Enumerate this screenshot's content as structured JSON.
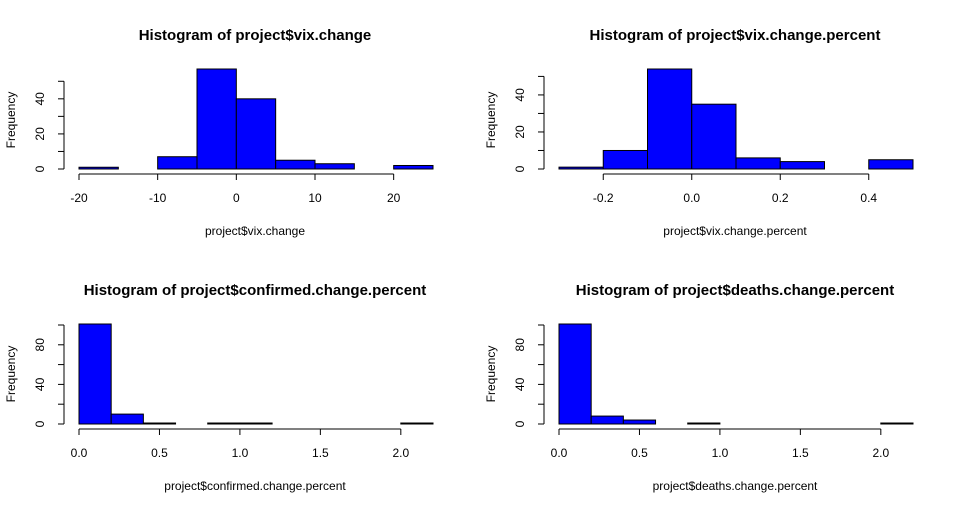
{
  "chart_data": [
    {
      "type": "bar",
      "title": "Histogram of project$vix.change",
      "xlabel": "project$vix.change",
      "ylabel": "Frequency",
      "bins": [
        [
          -20,
          -15
        ],
        [
          -15,
          -10
        ],
        [
          -10,
          -5
        ],
        [
          -5,
          0
        ],
        [
          0,
          5
        ],
        [
          5,
          10
        ],
        [
          10,
          15
        ],
        [
          15,
          20
        ],
        [
          20,
          25
        ]
      ],
      "values": [
        1,
        0,
        7,
        57,
        40,
        5,
        3,
        0,
        2
      ],
      "xlim": [
        -20,
        25
      ],
      "ylim": [
        0,
        57
      ],
      "x_ticks": [
        "-20",
        "-10",
        "0",
        "10",
        "20"
      ],
      "y_ticks": [
        "0",
        "20",
        "40"
      ],
      "bar_color": "#0000ff",
      "grid": false
    },
    {
      "type": "bar",
      "title": "Histogram of project$vix.change.percent",
      "xlabel": "project$vix.change.percent",
      "ylabel": "Frequency",
      "bins": [
        [
          -0.3,
          -0.2
        ],
        [
          -0.2,
          -0.1
        ],
        [
          -0.1,
          0.0
        ],
        [
          0.0,
          0.1
        ],
        [
          0.1,
          0.2
        ],
        [
          0.2,
          0.3
        ],
        [
          0.3,
          0.4
        ],
        [
          0.4,
          0.5
        ]
      ],
      "values": [
        1,
        10,
        54,
        35,
        6,
        4,
        0,
        5
      ],
      "xlim": [
        -0.3,
        0.5
      ],
      "ylim": [
        0,
        54
      ],
      "x_ticks": [
        "-0.2",
        "0.0",
        "0.2",
        "0.4"
      ],
      "y_ticks": [
        "0",
        "20",
        "40"
      ],
      "bar_color": "#0000ff",
      "grid": false
    },
    {
      "type": "bar",
      "title": "Histogram of project$confirmed.change.percent",
      "xlabel": "project$confirmed.change.percent",
      "ylabel": "Frequency",
      "bins": [
        [
          0.0,
          0.2
        ],
        [
          0.2,
          0.4
        ],
        [
          0.4,
          0.6
        ],
        [
          0.6,
          0.8
        ],
        [
          0.8,
          1.0
        ],
        [
          1.0,
          1.2
        ],
        [
          1.2,
          1.4
        ],
        [
          1.4,
          1.6
        ],
        [
          1.6,
          1.8
        ],
        [
          1.8,
          2.0
        ],
        [
          2.0,
          2.2
        ]
      ],
      "values": [
        101,
        10,
        1,
        0,
        1,
        1,
        0,
        0,
        0,
        0,
        1
      ],
      "xlim": [
        0,
        2.2
      ],
      "ylim": [
        0,
        101
      ],
      "x_ticks": [
        "0.0",
        "0.5",
        "1.0",
        "1.5",
        "2.0"
      ],
      "y_ticks": [
        "0",
        "40",
        "80"
      ],
      "bar_color": "#0000ff",
      "grid": false
    },
    {
      "type": "bar",
      "title": "Histogram of project$deaths.change.percent",
      "xlabel": "project$deaths.change.percent",
      "ylabel": "Frequency",
      "bins": [
        [
          0.0,
          0.2
        ],
        [
          0.2,
          0.4
        ],
        [
          0.4,
          0.6
        ],
        [
          0.6,
          0.8
        ],
        [
          0.8,
          1.0
        ],
        [
          1.0,
          1.2
        ],
        [
          1.2,
          1.4
        ],
        [
          1.4,
          1.6
        ],
        [
          1.6,
          1.8
        ],
        [
          1.8,
          2.0
        ],
        [
          2.0,
          2.2
        ]
      ],
      "values": [
        101,
        8,
        4,
        0,
        1,
        0,
        0,
        0,
        0,
        0,
        1
      ],
      "xlim": [
        0,
        2.2
      ],
      "ylim": [
        0,
        101
      ],
      "x_ticks": [
        "0.0",
        "0.5",
        "1.0",
        "1.5",
        "2.0"
      ],
      "y_ticks": [
        "0",
        "40",
        "80"
      ],
      "bar_color": "#0000ff",
      "grid": false
    }
  ]
}
